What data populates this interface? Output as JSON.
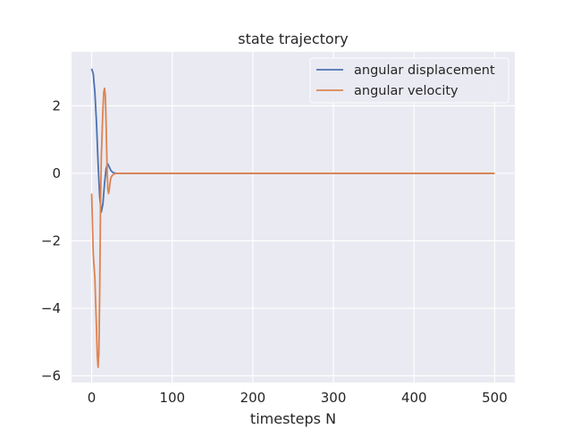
{
  "chart_data": {
    "type": "line",
    "title": "state trajectory",
    "xlabel": "timesteps N",
    "ylabel": "",
    "xlim": [
      -25,
      525
    ],
    "ylim": [
      -6.2,
      3.6
    ],
    "xticks": [
      0,
      100,
      200,
      300,
      400,
      500
    ],
    "yticks": [
      -6,
      -4,
      -2,
      0,
      2
    ],
    "grid": true,
    "legend_position": "top-right",
    "series": [
      {
        "name": "angular displacement",
        "color": "#4c72b0",
        "x": [
          0,
          2,
          4,
          6,
          8,
          10,
          12,
          14,
          16,
          18,
          20,
          22,
          24,
          26,
          28,
          30,
          35,
          40,
          50,
          100,
          200,
          300,
          400,
          500
        ],
        "y": [
          3.1,
          2.95,
          2.4,
          1.5,
          0.3,
          -0.7,
          -1.15,
          -0.9,
          -0.3,
          0.15,
          0.28,
          0.18,
          0.08,
          0.03,
          0.01,
          0.0,
          0.0,
          0.0,
          0.0,
          0.0,
          0.0,
          0.0,
          0.0,
          0.0
        ]
      },
      {
        "name": "angular velocity",
        "color": "#dd8452",
        "x": [
          0,
          1,
          2,
          4,
          6,
          7,
          8,
          9,
          10,
          11,
          12,
          13,
          14,
          15,
          16,
          17,
          18,
          19,
          20,
          21,
          22,
          23,
          24,
          26,
          28,
          30,
          35,
          40,
          50,
          100,
          200,
          300,
          400,
          500
        ],
        "y": [
          -0.6,
          -1.5,
          -2.4,
          -3.1,
          -4.6,
          -5.4,
          -5.75,
          -5.3,
          -3.5,
          -1.0,
          0.5,
          1.2,
          1.9,
          2.4,
          2.52,
          2.3,
          1.4,
          0.3,
          -0.45,
          -0.6,
          -0.45,
          -0.25,
          -0.12,
          -0.05,
          -0.02,
          0.0,
          0.0,
          0.0,
          0.0,
          0.0,
          0.0,
          0.0,
          0.0,
          0.0
        ]
      }
    ]
  }
}
